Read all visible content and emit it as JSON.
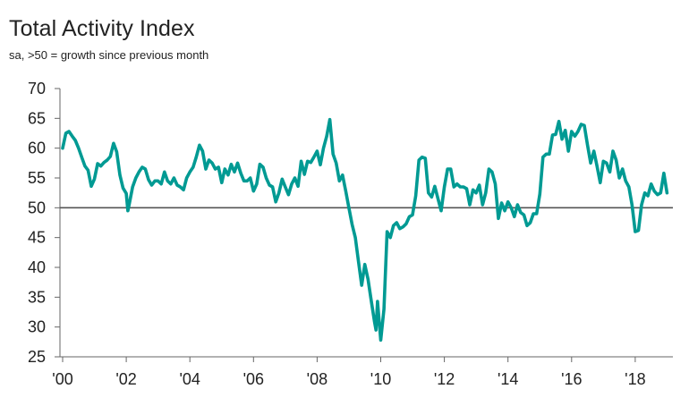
{
  "chart_data": {
    "type": "line",
    "title": "Total Activity Index",
    "subtitle": "sa, >50 = growth since previous month",
    "xlabel": "",
    "ylabel": "",
    "xlim": [
      2000,
      2019
    ],
    "ylim": [
      25,
      70
    ],
    "y_ticks": [
      25,
      30,
      35,
      40,
      45,
      50,
      55,
      60,
      65,
      70
    ],
    "x_ticks": [
      {
        "value": 2000,
        "label": "'00"
      },
      {
        "value": 2002,
        "label": "'02"
      },
      {
        "value": 2004,
        "label": "'04"
      },
      {
        "value": 2006,
        "label": "'06"
      },
      {
        "value": 2008,
        "label": "'08"
      },
      {
        "value": 2010,
        "label": "'10"
      },
      {
        "value": 2012,
        "label": "'12"
      },
      {
        "value": 2014,
        "label": "'14"
      },
      {
        "value": 2016,
        "label": "'16"
      },
      {
        "value": 2018,
        "label": "'18"
      }
    ],
    "reference_line": 50,
    "grid": false,
    "line_color": "#009a93",
    "reference_color": "#555555",
    "series": [
      {
        "points": [
          [
            2000.0,
            60.0
          ],
          [
            2000.1,
            62.5
          ],
          [
            2000.2,
            62.8
          ],
          [
            2000.3,
            62.0
          ],
          [
            2000.4,
            61.3
          ],
          [
            2000.5,
            60.0
          ],
          [
            2000.6,
            58.5
          ],
          [
            2000.7,
            57.0
          ],
          [
            2000.8,
            56.3
          ],
          [
            2000.9,
            53.6
          ],
          [
            2001.0,
            54.8
          ],
          [
            2001.1,
            57.4
          ],
          [
            2001.2,
            57.0
          ],
          [
            2001.3,
            57.6
          ],
          [
            2001.4,
            58.0
          ],
          [
            2001.5,
            58.6
          ],
          [
            2001.6,
            60.8
          ],
          [
            2001.7,
            59.4
          ],
          [
            2001.8,
            55.5
          ],
          [
            2001.9,
            53.3
          ],
          [
            2002.0,
            52.4
          ],
          [
            2002.05,
            49.5
          ],
          [
            2002.1,
            50.8
          ],
          [
            2002.2,
            53.5
          ],
          [
            2002.3,
            55.0
          ],
          [
            2002.4,
            56.0
          ],
          [
            2002.5,
            56.8
          ],
          [
            2002.6,
            56.5
          ],
          [
            2002.7,
            54.7
          ],
          [
            2002.8,
            53.8
          ],
          [
            2002.9,
            54.5
          ],
          [
            2003.0,
            54.5
          ],
          [
            2003.1,
            54.0
          ],
          [
            2003.2,
            56.0
          ],
          [
            2003.3,
            54.5
          ],
          [
            2003.4,
            54.0
          ],
          [
            2003.5,
            55.0
          ],
          [
            2003.6,
            53.8
          ],
          [
            2003.7,
            53.5
          ],
          [
            2003.8,
            53.0
          ],
          [
            2003.9,
            55.0
          ],
          [
            2004.0,
            56.0
          ],
          [
            2004.1,
            56.8
          ],
          [
            2004.2,
            58.5
          ],
          [
            2004.3,
            60.5
          ],
          [
            2004.4,
            59.5
          ],
          [
            2004.5,
            56.5
          ],
          [
            2004.6,
            58.0
          ],
          [
            2004.7,
            57.5
          ],
          [
            2004.8,
            56.5
          ],
          [
            2004.9,
            56.8
          ],
          [
            2005.0,
            54.2
          ],
          [
            2005.1,
            56.5
          ],
          [
            2005.2,
            55.5
          ],
          [
            2005.3,
            57.3
          ],
          [
            2005.4,
            56.0
          ],
          [
            2005.5,
            57.5
          ],
          [
            2005.6,
            55.8
          ],
          [
            2005.7,
            54.5
          ],
          [
            2005.8,
            54.5
          ],
          [
            2005.9,
            55.0
          ],
          [
            2006.0,
            52.8
          ],
          [
            2006.1,
            54.0
          ],
          [
            2006.2,
            57.3
          ],
          [
            2006.3,
            56.8
          ],
          [
            2006.4,
            55.0
          ],
          [
            2006.5,
            53.8
          ],
          [
            2006.6,
            53.5
          ],
          [
            2006.7,
            51.0
          ],
          [
            2006.8,
            52.5
          ],
          [
            2006.9,
            54.8
          ],
          [
            2007.0,
            53.5
          ],
          [
            2007.1,
            52.2
          ],
          [
            2007.2,
            54.0
          ],
          [
            2007.3,
            55.0
          ],
          [
            2007.4,
            53.6
          ],
          [
            2007.5,
            57.8
          ],
          [
            2007.6,
            55.6
          ],
          [
            2007.7,
            57.8
          ],
          [
            2007.8,
            57.6
          ],
          [
            2007.9,
            58.5
          ],
          [
            2008.0,
            59.5
          ],
          [
            2008.1,
            57.2
          ],
          [
            2008.2,
            60.0
          ],
          [
            2008.3,
            62.0
          ],
          [
            2008.4,
            64.8
          ],
          [
            2008.5,
            59.0
          ],
          [
            2008.6,
            57.5
          ],
          [
            2008.7,
            54.5
          ],
          [
            2008.8,
            55.5
          ],
          [
            2008.9,
            52.8
          ],
          [
            2009.0,
            50.0
          ],
          [
            2009.1,
            47.2
          ],
          [
            2009.2,
            45.0
          ],
          [
            2009.3,
            41.0
          ],
          [
            2009.4,
            37.0
          ],
          [
            2009.5,
            40.5
          ],
          [
            2009.6,
            38.0
          ],
          [
            2009.7,
            34.5
          ],
          [
            2009.8,
            31.0
          ],
          [
            2009.85,
            29.5
          ],
          [
            2009.9,
            34.3
          ],
          [
            2010.0,
            27.8
          ],
          [
            2010.1,
            33.0
          ],
          [
            2010.2,
            46.0
          ],
          [
            2010.3,
            45.0
          ],
          [
            2010.4,
            47.0
          ],
          [
            2010.5,
            47.5
          ],
          [
            2010.6,
            46.5
          ],
          [
            2010.7,
            46.8
          ],
          [
            2010.8,
            47.3
          ],
          [
            2010.9,
            48.5
          ],
          [
            2011.0,
            48.8
          ],
          [
            2011.1,
            52.0
          ],
          [
            2011.2,
            58.0
          ],
          [
            2011.3,
            58.5
          ],
          [
            2011.4,
            58.3
          ],
          [
            2011.5,
            52.5
          ],
          [
            2011.6,
            51.8
          ],
          [
            2011.7,
            53.6
          ],
          [
            2011.8,
            51.5
          ],
          [
            2011.9,
            49.5
          ],
          [
            2012.0,
            53.5
          ],
          [
            2012.1,
            56.5
          ],
          [
            2012.2,
            56.5
          ],
          [
            2012.3,
            53.5
          ],
          [
            2012.4,
            54.0
          ],
          [
            2012.5,
            53.5
          ],
          [
            2012.6,
            53.5
          ],
          [
            2012.7,
            53.2
          ],
          [
            2012.8,
            50.5
          ],
          [
            2012.9,
            53.0
          ],
          [
            2013.0,
            52.5
          ],
          [
            2013.1,
            53.8
          ],
          [
            2013.2,
            50.5
          ],
          [
            2013.3,
            52.5
          ],
          [
            2013.4,
            56.5
          ],
          [
            2013.5,
            56.0
          ],
          [
            2013.6,
            54.0
          ],
          [
            2013.7,
            48.2
          ],
          [
            2013.8,
            50.8
          ],
          [
            2013.9,
            49.5
          ],
          [
            2014.0,
            51.0
          ],
          [
            2014.1,
            50.0
          ],
          [
            2014.2,
            48.5
          ],
          [
            2014.3,
            50.5
          ],
          [
            2014.4,
            49.2
          ],
          [
            2014.5,
            48.8
          ],
          [
            2014.6,
            47.0
          ],
          [
            2014.7,
            47.5
          ],
          [
            2014.8,
            49.0
          ],
          [
            2014.9,
            49.0
          ],
          [
            2015.0,
            52.3
          ],
          [
            2015.1,
            58.5
          ],
          [
            2015.2,
            59.0
          ],
          [
            2015.3,
            59.0
          ],
          [
            2015.4,
            62.2
          ],
          [
            2015.5,
            62.3
          ],
          [
            2015.6,
            64.5
          ],
          [
            2015.7,
            61.5
          ],
          [
            2015.8,
            63.0
          ],
          [
            2015.9,
            59.5
          ],
          [
            2016.0,
            62.8
          ],
          [
            2016.1,
            62.0
          ],
          [
            2016.2,
            62.8
          ],
          [
            2016.3,
            64.0
          ],
          [
            2016.4,
            63.8
          ],
          [
            2016.5,
            60.5
          ],
          [
            2016.6,
            57.5
          ],
          [
            2016.7,
            59.5
          ],
          [
            2016.8,
            57.0
          ],
          [
            2016.9,
            54.2
          ],
          [
            2017.0,
            57.8
          ],
          [
            2017.1,
            57.5
          ],
          [
            2017.2,
            56.0
          ],
          [
            2017.3,
            59.5
          ],
          [
            2017.4,
            58.0
          ],
          [
            2017.5,
            55.0
          ],
          [
            2017.6,
            56.5
          ],
          [
            2017.7,
            54.5
          ],
          [
            2017.8,
            53.5
          ],
          [
            2017.9,
            50.5
          ],
          [
            2018.0,
            46.0
          ],
          [
            2018.1,
            46.2
          ],
          [
            2018.2,
            50.5
          ],
          [
            2018.3,
            52.5
          ],
          [
            2018.4,
            52.0
          ],
          [
            2018.5,
            54.0
          ],
          [
            2018.6,
            52.8
          ],
          [
            2018.7,
            52.2
          ],
          [
            2018.8,
            52.5
          ],
          [
            2018.9,
            55.8
          ],
          [
            2019.0,
            52.5
          ]
        ]
      }
    ]
  }
}
